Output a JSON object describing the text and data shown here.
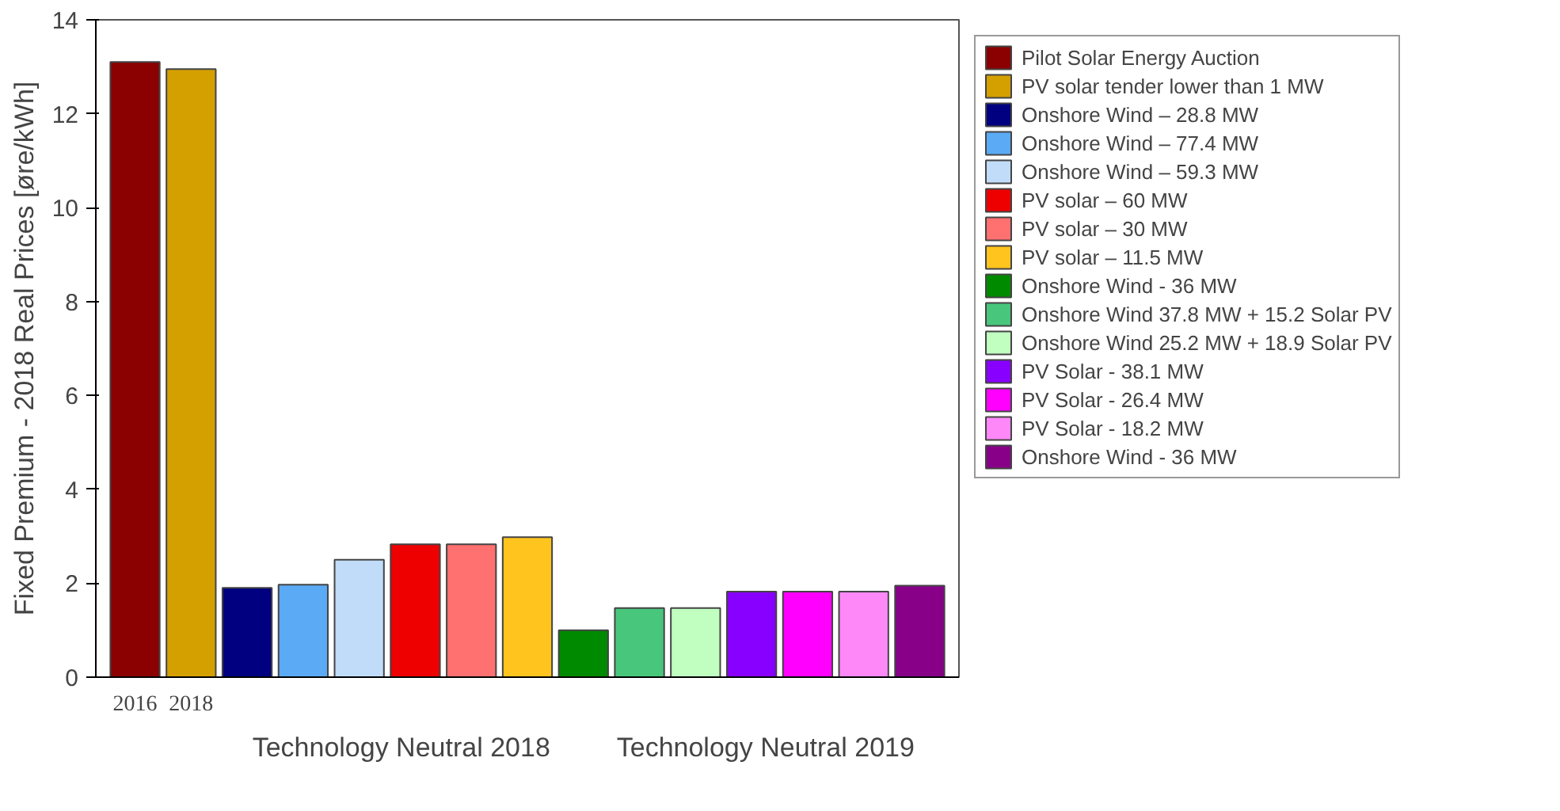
{
  "chart_data": {
    "type": "bar",
    "ylabel": "Fixed Premium - 2018 Real Prices [øre/kWh]",
    "categories": [
      "2016",
      "2018",
      null,
      null,
      null,
      null,
      null,
      null,
      null,
      null,
      null,
      null,
      null,
      null,
      null
    ],
    "series": [
      {
        "name": "Pilot Solar Energy Auction",
        "color": "#8b0000",
        "values": [
          13.1,
          null,
          null,
          null,
          null,
          null,
          null,
          null,
          null,
          null,
          null,
          null,
          null,
          null,
          null
        ]
      },
      {
        "name": "PV solar tender lower than 1 MW",
        "color": "#d4a000",
        "values": [
          null,
          12.95,
          null,
          null,
          null,
          null,
          null,
          null,
          null,
          null,
          null,
          null,
          null,
          null,
          null
        ]
      },
      {
        "name": "Onshore Wind – 28.8 MW",
        "color": "#000080",
        "values": [
          null,
          null,
          1.9,
          null,
          null,
          null,
          null,
          null,
          null,
          null,
          null,
          null,
          null,
          null,
          null
        ]
      },
      {
        "name": "Onshore Wind – 77.4 MW",
        "color": "#5aaaf5",
        "values": [
          null,
          null,
          null,
          1.97,
          null,
          null,
          null,
          null,
          null,
          null,
          null,
          null,
          null,
          null,
          null
        ]
      },
      {
        "name": "Onshore Wind – 59.3 MW",
        "color": "#c0dcf8",
        "values": [
          null,
          null,
          null,
          null,
          2.5,
          null,
          null,
          null,
          null,
          null,
          null,
          null,
          null,
          null,
          null
        ]
      },
      {
        "name": "PV solar – 60 MW",
        "color": "#ee0000",
        "values": [
          null,
          null,
          null,
          null,
          null,
          2.83,
          null,
          null,
          null,
          null,
          null,
          null,
          null,
          null,
          null
        ]
      },
      {
        "name": "PV solar – 30 MW",
        "color": "#ff7070",
        "values": [
          null,
          null,
          null,
          null,
          null,
          null,
          2.83,
          null,
          null,
          null,
          null,
          null,
          null,
          null,
          null
        ]
      },
      {
        "name": "PV solar – 11.5 MW",
        "color": "#ffc41e",
        "values": [
          null,
          null,
          null,
          null,
          null,
          null,
          null,
          2.98,
          null,
          null,
          null,
          null,
          null,
          null,
          null
        ]
      },
      {
        "name": "Onshore Wind - 36 MW",
        "color": "#008a00",
        "values": [
          null,
          null,
          null,
          null,
          null,
          null,
          null,
          null,
          1.0,
          null,
          null,
          null,
          null,
          null,
          null
        ]
      },
      {
        "name": "Onshore Wind 37.8 MW + 15.2 Solar PV",
        "color": "#48c67c",
        "values": [
          null,
          null,
          null,
          null,
          null,
          null,
          null,
          null,
          null,
          1.47,
          null,
          null,
          null,
          null,
          null
        ]
      },
      {
        "name": "Onshore Wind 25.2 MW + 18.9 Solar PV",
        "color": "#c0ffc0",
        "values": [
          null,
          null,
          null,
          null,
          null,
          null,
          null,
          null,
          null,
          null,
          1.47,
          null,
          null,
          null,
          null
        ]
      },
      {
        "name": "PV Solar - 38.1 MW",
        "color": "#8800ff",
        "values": [
          null,
          null,
          null,
          null,
          null,
          null,
          null,
          null,
          null,
          null,
          null,
          1.82,
          null,
          null,
          null
        ]
      },
      {
        "name": "PV Solar - 26.4 MW",
        "color": "#ff00ff",
        "values": [
          null,
          null,
          null,
          null,
          null,
          null,
          null,
          null,
          null,
          null,
          null,
          null,
          1.82,
          null,
          null
        ]
      },
      {
        "name": "PV Solar - 18.2 MW",
        "color": "#ff88f8",
        "values": [
          null,
          null,
          null,
          null,
          null,
          null,
          null,
          null,
          null,
          null,
          null,
          null,
          null,
          1.82,
          null
        ]
      },
      {
        "name": "Onshore Wind - 36 MW",
        "color": "#880088",
        "values": [
          null,
          null,
          null,
          null,
          null,
          null,
          null,
          null,
          null,
          null,
          null,
          null,
          null,
          null,
          1.95
        ]
      }
    ],
    "ylim": [
      0,
      14
    ],
    "yticks": [
      0,
      2,
      4,
      6,
      8,
      10,
      12,
      14
    ],
    "annotations": [
      "Technology Neutral 2018",
      "Technology Neutral 2019"
    ],
    "grid": false,
    "legend": "right"
  }
}
